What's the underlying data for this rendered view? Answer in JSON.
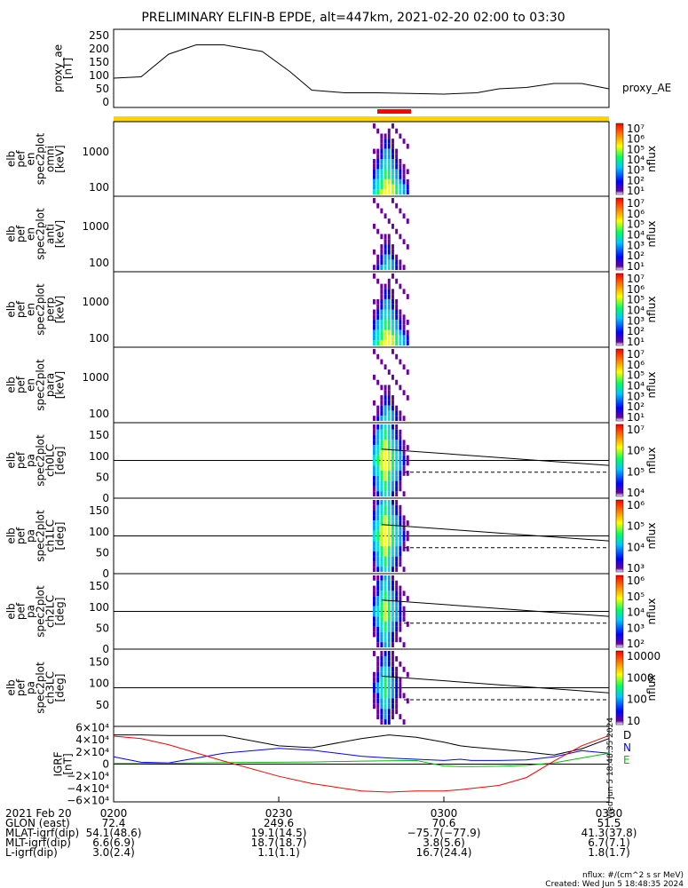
{
  "title": "PRELIMINARY ELFIN-B EPDE, alt=447km, 2021-02-20 02:00 to 03:30",
  "chart_data": [
    {
      "type": "line",
      "panel": "proxy_ae",
      "ylabel": [
        "proxy_ae",
        "[nT]"
      ],
      "yticks": [
        "250",
        "200",
        "150",
        "100",
        "50",
        "0"
      ],
      "ylim": [
        0,
        260
      ],
      "legend": "proxy_AE",
      "x_minutes": [
        0,
        5,
        10,
        15,
        20,
        27,
        32,
        36,
        42,
        48,
        55,
        60,
        66,
        70,
        75,
        80,
        85,
        90
      ],
      "values": [
        90,
        95,
        180,
        215,
        215,
        190,
        115,
        45,
        35,
        35,
        32,
        30,
        35,
        50,
        55,
        70,
        70,
        50
      ]
    },
    {
      "type": "heatmap",
      "panel": "omni",
      "ylabel": [
        "elb",
        "pef",
        "en",
        "spec2plot",
        "omni",
        "[keV]"
      ],
      "yticks": [
        "1000",
        "100"
      ],
      "cbar_ticks": [
        "10⁷",
        "10⁶",
        "10⁵",
        "10⁴",
        "10³",
        "10²",
        "10¹"
      ],
      "cbar_label": "nflux"
    },
    {
      "type": "heatmap",
      "panel": "anti",
      "ylabel": [
        "elb",
        "pef",
        "en",
        "spec2plot",
        "anti",
        "[keV]"
      ],
      "yticks": [
        "1000",
        "100"
      ],
      "cbar_ticks": [
        "10⁷",
        "10⁶",
        "10⁵",
        "10⁴",
        "10³",
        "10²",
        "10¹"
      ],
      "cbar_label": "nflux"
    },
    {
      "type": "heatmap",
      "panel": "perp",
      "ylabel": [
        "elb",
        "pef",
        "en",
        "spec2plot",
        "perp",
        "[keV]"
      ],
      "yticks": [
        "1000",
        "100"
      ],
      "cbar_ticks": [
        "10⁷",
        "10⁶",
        "10⁵",
        "10⁴",
        "10³",
        "10²",
        "10¹"
      ],
      "cbar_label": "nflux"
    },
    {
      "type": "heatmap",
      "panel": "para",
      "ylabel": [
        "elb",
        "pef",
        "en",
        "spec2plot",
        "para",
        "[keV]"
      ],
      "yticks": [
        "1000",
        "100"
      ],
      "cbar_ticks": [
        "10⁷",
        "10⁶",
        "10⁵",
        "10⁴",
        "10³",
        "10²",
        "10¹"
      ],
      "cbar_label": "nflux"
    },
    {
      "type": "heatmap",
      "panel": "ch0LC",
      "ylabel": [
        "elb",
        "pef",
        "pa",
        "spec2plot",
        "ch0LC",
        "[deg]"
      ],
      "yticks": [
        "150",
        "100",
        "50",
        "0"
      ],
      "ylim": [
        0,
        180
      ],
      "cbar_ticks": [
        "10⁷",
        "10⁶",
        "10⁵",
        "10⁴"
      ],
      "cbar_label": "nflux"
    },
    {
      "type": "heatmap",
      "panel": "ch1LC",
      "ylabel": [
        "elb",
        "pef",
        "pa",
        "spec2plot",
        "ch1LC",
        "[deg]"
      ],
      "yticks": [
        "150",
        "100",
        "50",
        "0"
      ],
      "ylim": [
        0,
        180
      ],
      "cbar_ticks": [
        "10⁶",
        "10⁵",
        "10⁴",
        "10³"
      ],
      "cbar_label": "nflux"
    },
    {
      "type": "heatmap",
      "panel": "ch2LC",
      "ylabel": [
        "elb",
        "pef",
        "pa",
        "spec2plot",
        "ch2LC",
        "[deg]"
      ],
      "yticks": [
        "150",
        "100",
        "50",
        "0"
      ],
      "ylim": [
        0,
        180
      ],
      "cbar_ticks": [
        "10⁶",
        "10⁵",
        "10⁴",
        "10³",
        "10²"
      ],
      "cbar_label": "nflux"
    },
    {
      "type": "heatmap",
      "panel": "ch3LC",
      "ylabel": [
        "elb",
        "pef",
        "pa",
        "spec2plot",
        "ch3LC",
        "[deg]"
      ],
      "yticks": [
        "150",
        "100",
        "50"
      ],
      "ylim": [
        0,
        180
      ],
      "cbar_ticks": [
        "10000",
        "1000",
        "100",
        "10"
      ],
      "cbar_label": "nflux"
    },
    {
      "type": "line",
      "panel": "IGRF",
      "ylabel": [
        "IGRF",
        "[nT]"
      ],
      "yticks": [
        "6×10⁴",
        "4×10⁴",
        "2×10⁴",
        "0",
        "−2×10⁴",
        "−4×10⁴",
        "−6×10⁴"
      ],
      "ylim": [
        -62000,
        62000
      ],
      "x_minutes": [
        0,
        5,
        10,
        20,
        30,
        36,
        45,
        50,
        55,
        60,
        63,
        65,
        70,
        75,
        80,
        85,
        90
      ],
      "series": [
        {
          "name": "D",
          "color": "#000000",
          "values": [
            48000,
            48000,
            47000,
            47000,
            30000,
            27000,
            42000,
            48000,
            44000,
            36000,
            30000,
            28000,
            24000,
            20000,
            15000,
            25000,
            42000
          ]
        },
        {
          "name": "N",
          "color": "#0000ff",
          "values": [
            12000,
            3000,
            2000,
            18000,
            26000,
            23000,
            13000,
            10000,
            8000,
            6000,
            8000,
            6000,
            6000,
            7000,
            12000,
            22000,
            18000
          ]
        },
        {
          "name": "E",
          "color": "#00c000",
          "values": [
            1000,
            1000,
            1500,
            2500,
            3000,
            3500,
            5000,
            5500,
            6000,
            -3000,
            -4000,
            -4000,
            -3500,
            -2000,
            2000,
            10000,
            18000
          ]
        },
        {
          "name": "",
          "color": "#ff0000",
          "values": [
            46000,
            42000,
            32000,
            5000,
            -20000,
            -32000,
            -44000,
            -46000,
            -44000,
            -44000,
            -42000,
            -40000,
            -35000,
            -22000,
            5000,
            30000,
            47000
          ]
        }
      ]
    }
  ],
  "xticks": [
    "0200",
    "0230",
    "0300",
    "0330"
  ],
  "ephemeris": {
    "rows": [
      {
        "label": "2021 Feb 20",
        "values": [
          "0200",
          "0230",
          "0300",
          "0330"
        ]
      },
      {
        "label": "GLON (east)",
        "values": [
          "72.4",
          "249.6",
          "70.6",
          "51.5"
        ]
      },
      {
        "label": "MLAT-igrf(dip)",
        "values": [
          "54.1(48.6)",
          "19.1(14.5)",
          "−75.7(−77.9)",
          "41.3(37.8)"
        ]
      },
      {
        "label": "MLT-igrf(dip)",
        "values": [
          "6.6(6.9)",
          "18.7(18.7)",
          "3.8(5.6)",
          "6.7(7.1)"
        ]
      },
      {
        "label": "L-igrf(dip)",
        "values": [
          "3.0(2.4)",
          "1.1(1.1)",
          "16.7(24.4)",
          "1.8(1.7)"
        ]
      }
    ]
  },
  "footer": {
    "units": "nflux: #/(cm^2 s sr MeV)",
    "created": "Created: Wed Jun  5 18:48:35 2024",
    "side_stamp": "Wed Jun  5 18:48:35 2024"
  },
  "colors": {
    "sci_zone_bar": "#ffd200",
    "red_bar": "#ff0000"
  }
}
